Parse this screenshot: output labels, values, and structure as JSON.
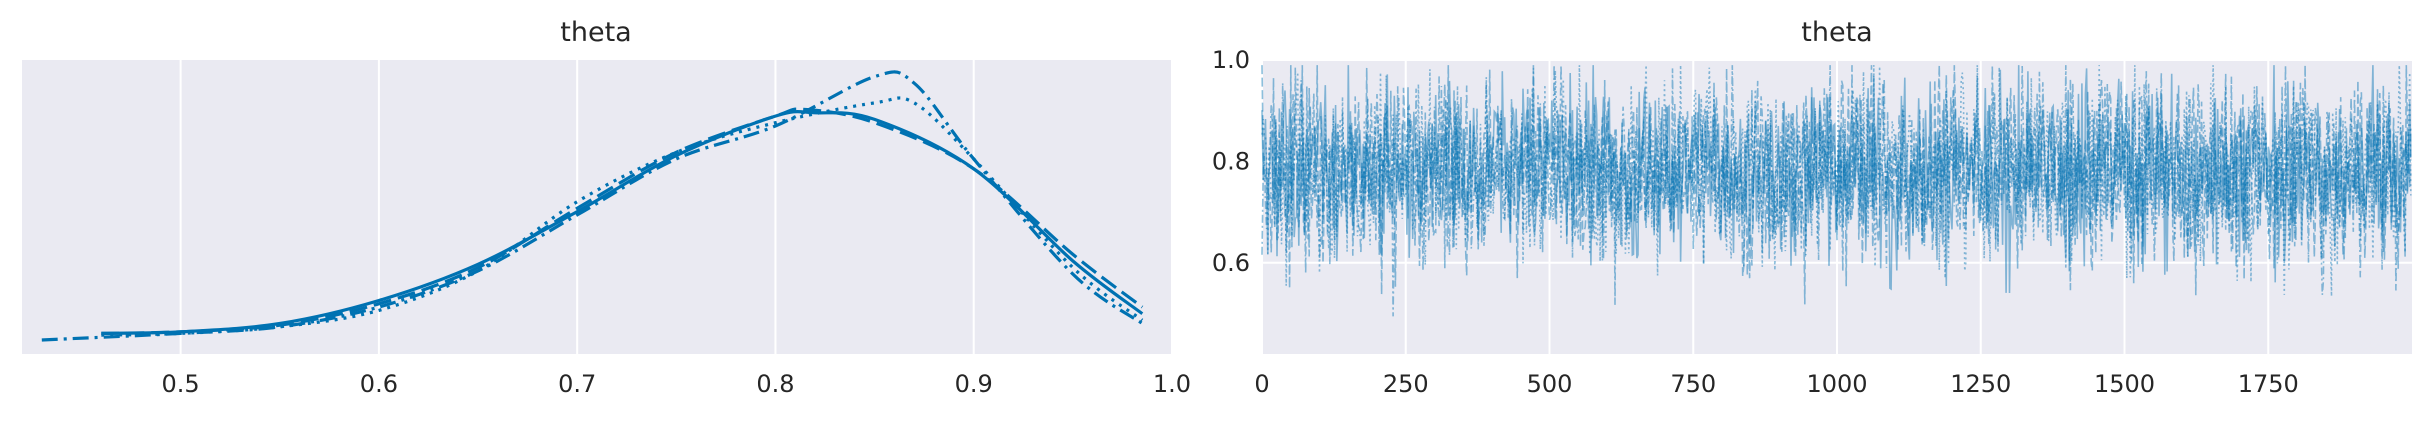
{
  "chart_data": [
    {
      "type": "line",
      "title": "theta",
      "xlabel": "",
      "ylabel": "",
      "xlim": [
        0.42,
        1.0
      ],
      "xticks": [
        0.5,
        0.6,
        0.7,
        0.8,
        0.9,
        1.0
      ],
      "xtick_labels": [
        "0.5",
        "0.6",
        "0.7",
        "0.8",
        "0.9",
        "1.0"
      ],
      "y_axis_visible": false,
      "grid": true,
      "line_color": "#0072B2",
      "series": [
        {
          "linestyle": "solid",
          "x": [
            0.46,
            0.5,
            0.55,
            0.6,
            0.65,
            0.7,
            0.75,
            0.8,
            0.82,
            0.85,
            0.9,
            0.95,
            0.985
          ],
          "y": [
            0.02,
            0.025,
            0.05,
            0.12,
            0.23,
            0.39,
            0.56,
            0.68,
            0.69,
            0.67,
            0.52,
            0.24,
            0.08
          ]
        },
        {
          "linestyle": "dashed",
          "x": [
            0.46,
            0.5,
            0.55,
            0.6,
            0.65,
            0.7,
            0.75,
            0.8,
            0.815,
            0.85,
            0.9,
            0.95,
            0.985
          ],
          "y": [
            0.02,
            0.025,
            0.045,
            0.11,
            0.22,
            0.4,
            0.57,
            0.68,
            0.7,
            0.66,
            0.52,
            0.26,
            0.1
          ]
        },
        {
          "linestyle": "dotted",
          "x": [
            0.46,
            0.5,
            0.55,
            0.6,
            0.65,
            0.7,
            0.75,
            0.8,
            0.85,
            0.87,
            0.9,
            0.95,
            0.985
          ],
          "y": [
            0.015,
            0.02,
            0.04,
            0.09,
            0.21,
            0.42,
            0.57,
            0.66,
            0.72,
            0.72,
            0.55,
            0.22,
            0.06
          ]
        },
        {
          "linestyle": "dashdot",
          "x": [
            0.43,
            0.5,
            0.55,
            0.6,
            0.65,
            0.7,
            0.75,
            0.8,
            0.85,
            0.87,
            0.9,
            0.95,
            0.985
          ],
          "y": [
            0.0,
            0.02,
            0.04,
            0.1,
            0.21,
            0.38,
            0.55,
            0.65,
            0.8,
            0.78,
            0.55,
            0.2,
            0.05
          ]
        }
      ]
    },
    {
      "type": "line",
      "title": "theta",
      "xlabel": "",
      "ylabel": "",
      "xlim": [
        0,
        2000
      ],
      "ylim": [
        0.42,
        1.0
      ],
      "xticks": [
        0,
        250,
        500,
        750,
        1000,
        1250,
        1500,
        1750
      ],
      "xtick_labels": [
        "0",
        "250",
        "500",
        "750",
        "1000",
        "1250",
        "1500",
        "1750"
      ],
      "yticks": [
        0.6,
        0.8,
        1.0
      ],
      "ytick_labels": [
        "0.6",
        "0.8",
        "1.0"
      ],
      "grid": true,
      "line_color": "#0072B2",
      "trace_draws": 2000,
      "trace_chains": 4,
      "trace_mean": 0.8,
      "trace_range": [
        0.43,
        0.99
      ]
    }
  ]
}
